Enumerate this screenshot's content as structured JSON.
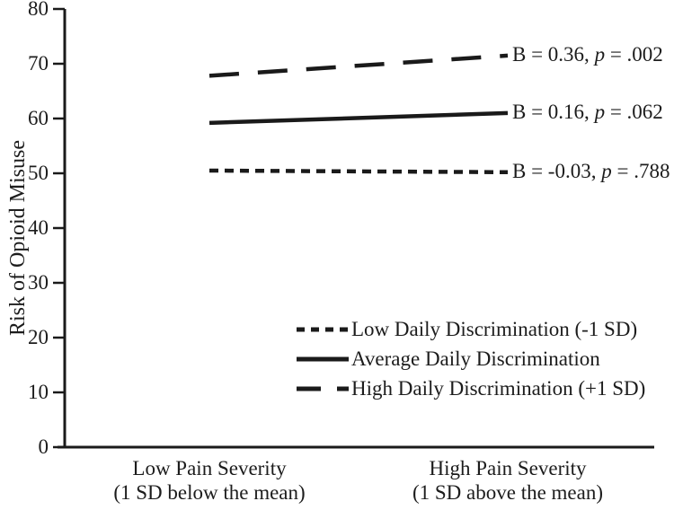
{
  "figure": {
    "background": "#ffffff",
    "ink_color": "#1a1a1a"
  },
  "chart_data": {
    "type": "line",
    "title": "",
    "xlabel": "",
    "ylabel": "Risk of Opioid Misuse",
    "ylim": [
      0,
      80
    ],
    "yticks": [
      0,
      10,
      20,
      30,
      40,
      50,
      60,
      70,
      80
    ],
    "grid": false,
    "legend_position": "lower-center",
    "categories": [
      {
        "line1": "Low Pain Severity",
        "line2": "(1 SD below the mean)"
      },
      {
        "line1": "High Pain Severity",
        "line2": "(1 SD above the mean)"
      }
    ],
    "series": [
      {
        "name": "Low Daily Discrimination (-1 SD)",
        "line_style": "short-dash",
        "values": [
          50.5,
          50.2
        ],
        "B": -0.03,
        "p": 0.788,
        "annotation": {
          "prefix": "B = -0.03, ",
          "italic": "p",
          "suffix": " = .788"
        }
      },
      {
        "name": "Average Daily Discrimination",
        "line_style": "solid",
        "values": [
          59.2,
          61.0
        ],
        "B": 0.16,
        "p": 0.062,
        "annotation": {
          "prefix": "B = 0.16, ",
          "italic": "p",
          "suffix": " = .062"
        }
      },
      {
        "name": "High Daily Discrimination (+1 SD)",
        "line_style": "long-dash",
        "values": [
          67.8,
          71.5
        ],
        "B": 0.36,
        "p": 0.002,
        "annotation": {
          "prefix": "B = 0.36, ",
          "italic": "p",
          "suffix": " = .002"
        }
      }
    ]
  }
}
